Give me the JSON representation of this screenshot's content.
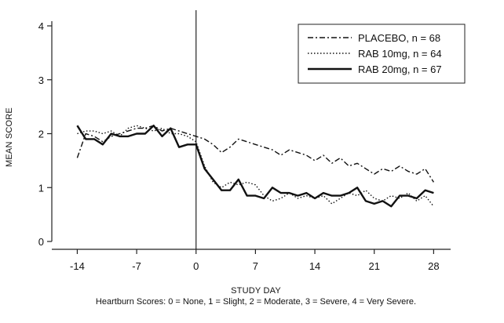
{
  "chart_data": {
    "type": "line",
    "xlabel": "STUDY DAY",
    "ylabel": "MEAN SCORE",
    "footnote": "Heartburn Scores: 0 = None, 1 = Slight, 2 = Moderate, 3 = Severe, 4 = Very Severe.",
    "xlim": [
      -17,
      30
    ],
    "ylim": [
      0,
      4
    ],
    "xticks": [
      -14,
      -7,
      0,
      7,
      14,
      21,
      28
    ],
    "xtick_labels": [
      "-14",
      "-7",
      "0",
      "7",
      "14",
      "21",
      "28"
    ],
    "yticks": [
      0,
      1,
      2,
      3,
      4
    ],
    "ytick_labels": [
      "0",
      "1",
      "2",
      "3",
      "4"
    ],
    "reference_line_x": 0,
    "legend_placement": "top-right",
    "grid": false,
    "series": [
      {
        "name": "PLACEBO, n = 68",
        "style": "dashdot",
        "x": [
          -14,
          -13,
          -12,
          -11,
          -10,
          -9,
          -8,
          -7,
          -6,
          -5,
          -4,
          -3,
          -2,
          -1,
          0,
          1,
          2,
          3,
          4,
          5,
          6,
          7,
          8,
          9,
          10,
          11,
          12,
          13,
          14,
          15,
          16,
          17,
          18,
          19,
          20,
          21,
          22,
          23,
          24,
          25,
          26,
          27,
          28
        ],
        "values": [
          1.55,
          2.0,
          1.95,
          1.85,
          1.95,
          2.0,
          2.05,
          2.1,
          2.1,
          2.15,
          2.05,
          2.1,
          2.05,
          2.0,
          1.95,
          1.9,
          1.8,
          1.65,
          1.75,
          1.9,
          1.85,
          1.8,
          1.75,
          1.7,
          1.6,
          1.7,
          1.65,
          1.6,
          1.5,
          1.6,
          1.45,
          1.55,
          1.4,
          1.45,
          1.35,
          1.25,
          1.35,
          1.3,
          1.4,
          1.3,
          1.25,
          1.35,
          1.1
        ]
      },
      {
        "name": "RAB 10mg, n = 64",
        "style": "dotted",
        "x": [
          -14,
          -13,
          -12,
          -11,
          -10,
          -9,
          -8,
          -7,
          -6,
          -5,
          -4,
          -3,
          -2,
          -1,
          0,
          1,
          2,
          3,
          4,
          5,
          6,
          7,
          8,
          9,
          10,
          11,
          12,
          13,
          14,
          15,
          16,
          17,
          18,
          19,
          20,
          21,
          22,
          23,
          24,
          25,
          26,
          27,
          28
        ],
        "values": [
          2.0,
          2.05,
          2.05,
          2.0,
          2.05,
          1.95,
          2.1,
          2.15,
          2.1,
          2.05,
          2.1,
          2.0,
          2.0,
          1.95,
          1.85,
          1.4,
          1.1,
          1.0,
          1.1,
          1.05,
          1.1,
          1.05,
          0.85,
          0.75,
          0.8,
          0.9,
          0.8,
          0.85,
          0.8,
          0.85,
          0.7,
          0.8,
          0.9,
          0.85,
          0.95,
          0.8,
          0.75,
          0.85,
          0.8,
          0.9,
          0.75,
          0.85,
          0.65
        ]
      },
      {
        "name": "RAB 20mg, n = 67",
        "style": "solid",
        "x": [
          -14,
          -13,
          -12,
          -11,
          -10,
          -9,
          -8,
          -7,
          -6,
          -5,
          -4,
          -3,
          -2,
          -1,
          0,
          1,
          2,
          3,
          4,
          5,
          6,
          7,
          8,
          9,
          10,
          11,
          12,
          13,
          14,
          15,
          16,
          17,
          18,
          19,
          20,
          21,
          22,
          23,
          24,
          25,
          26,
          27,
          28
        ],
        "values": [
          2.15,
          1.9,
          1.9,
          1.8,
          2.0,
          1.95,
          1.95,
          2.0,
          2.0,
          2.15,
          1.95,
          2.1,
          1.75,
          1.8,
          1.8,
          1.35,
          1.15,
          0.95,
          0.95,
          1.15,
          0.85,
          0.85,
          0.8,
          1.0,
          0.9,
          0.9,
          0.85,
          0.9,
          0.8,
          0.9,
          0.85,
          0.85,
          0.9,
          1.0,
          0.75,
          0.7,
          0.75,
          0.65,
          0.85,
          0.85,
          0.8,
          0.95,
          0.9
        ]
      }
    ]
  }
}
